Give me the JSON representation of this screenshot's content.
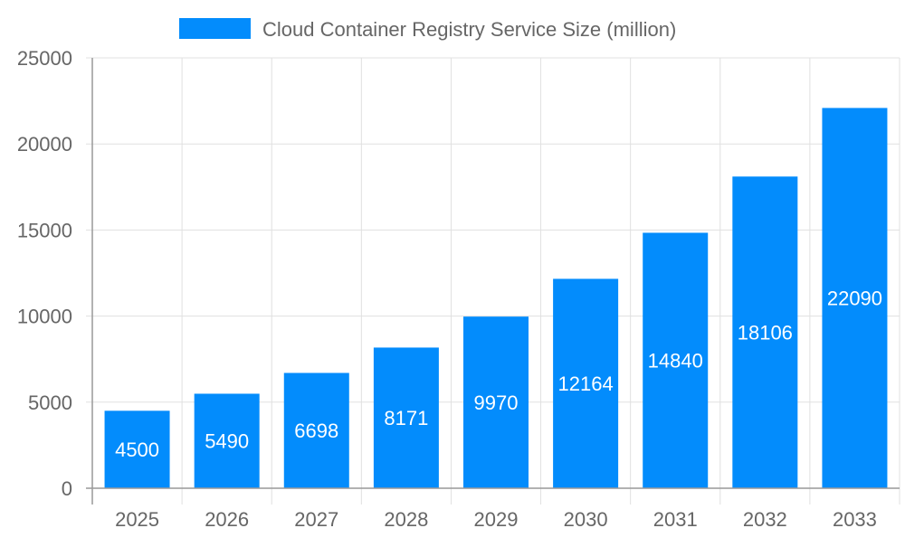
{
  "chart_data": {
    "type": "bar",
    "title": "",
    "xlabel": "",
    "ylabel": "",
    "categories": [
      "2025",
      "2026",
      "2027",
      "2028",
      "2029",
      "2030",
      "2031",
      "2032",
      "2033"
    ],
    "series": [
      {
        "name": "Cloud Container Registry Service Size (million)",
        "values": [
          4500,
          5490,
          6698,
          8171,
          9970,
          12164,
          14840,
          18106,
          22090
        ]
      }
    ],
    "ylim": [
      0,
      25000
    ],
    "yticks": [
      0,
      5000,
      10000,
      15000,
      20000,
      25000
    ],
    "grid": true,
    "legend": "top",
    "data_labels": "inside-center",
    "colors": {
      "bar": "#038cfc",
      "grid": "#e0e0e0",
      "axis": "#999999",
      "text": "#666666",
      "label": "#ffffff"
    }
  }
}
